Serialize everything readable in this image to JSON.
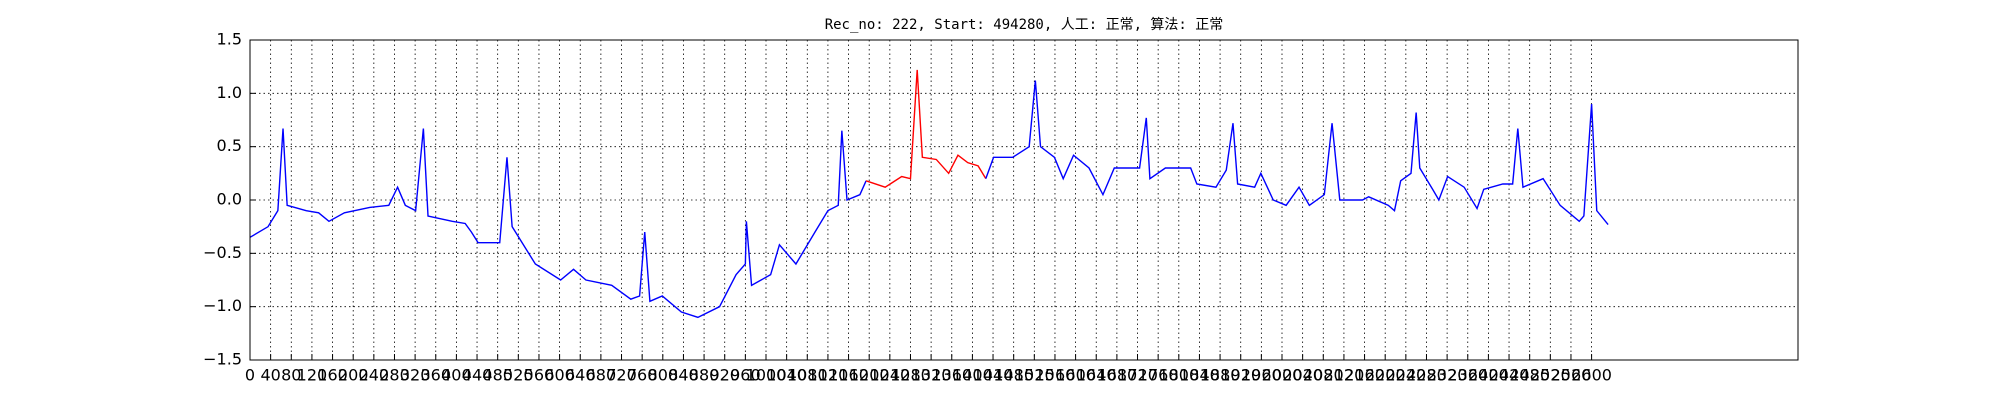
{
  "chart_data": {
    "type": "line",
    "title": "Rec_no: 222, Start: 494280, 人工: 正常, 算法: 正常",
    "series": [
      {
        "color": "#0000ff",
        "x": [
          0,
          35,
          54,
          64,
          72,
          109,
          133,
          153,
          183,
          232,
          269,
          286,
          301,
          321,
          336,
          345,
          392,
          417,
          429,
          442,
          484,
          498,
          508,
          553,
          602,
          627,
          651,
          701,
          738,
          755,
          765,
          775,
          799,
          836,
          868,
          910,
          942,
          960,
          962,
          972,
          1009,
          1026,
          1058,
          1095,
          1120,
          1140,
          1147,
          1157,
          1182,
          1194
        ],
        "values": [
          -0.35,
          -0.25,
          -0.1,
          0.67,
          -0.05,
          -0.1,
          -0.12,
          -0.2,
          -0.12,
          -0.07,
          -0.05,
          0.12,
          -0.05,
          -0.1,
          0.67,
          -0.15,
          -0.2,
          -0.22,
          -0.3,
          -0.4,
          -0.4,
          0.4,
          -0.25,
          -0.6,
          -0.75,
          -0.65,
          -0.75,
          -0.8,
          -0.93,
          -0.9,
          -0.3,
          -0.95,
          -0.9,
          -1.05,
          -1.1,
          -1.0,
          -0.7,
          -0.6,
          -0.2,
          -0.8,
          -0.7,
          -0.42,
          -0.6,
          -0.3,
          -0.1,
          -0.05,
          0.65,
          0.0,
          0.05,
          0.18
        ]
      },
      {
        "color": "#ff0000",
        "x": [
          1194,
          1231,
          1263,
          1280,
          1293,
          1303,
          1330,
          1354,
          1372,
          1391,
          1411,
          1426
        ],
        "values": [
          0.18,
          0.12,
          0.22,
          0.2,
          1.22,
          0.4,
          0.38,
          0.25,
          0.42,
          0.35,
          0.32,
          0.2
        ]
      },
      {
        "color": "#0000ff",
        "x": [
          1426,
          1441,
          1478,
          1510,
          1522,
          1532,
          1559,
          1576,
          1596,
          1626,
          1653,
          1675,
          1724,
          1737,
          1744,
          1774,
          1823,
          1835,
          1872,
          1892,
          1905,
          1914,
          1947,
          1959,
          1983,
          2008,
          2033,
          2053,
          2082,
          2097,
          2112,
          2156,
          2168,
          2206,
          2218,
          2230,
          2250,
          2260,
          2267,
          2292,
          2304,
          2321,
          2353,
          2378,
          2391,
          2428,
          2447,
          2457,
          2467,
          2506,
          2539,
          2576,
          2585,
          2600,
          2610,
          2632
        ],
        "values": [
          0.2,
          0.4,
          0.4,
          0.5,
          1.12,
          0.5,
          0.4,
          0.2,
          0.42,
          0.3,
          0.05,
          0.3,
          0.3,
          0.77,
          0.2,
          0.3,
          0.3,
          0.15,
          0.12,
          0.28,
          0.72,
          0.15,
          0.12,
          0.25,
          0.0,
          -0.05,
          0.12,
          -0.05,
          0.05,
          0.72,
          0.0,
          0.0,
          0.03,
          -0.05,
          -0.1,
          0.18,
          0.25,
          0.82,
          0.3,
          0.1,
          0.0,
          0.22,
          0.12,
          -0.08,
          0.1,
          0.15,
          0.15,
          0.67,
          0.12,
          0.2,
          -0.05,
          -0.2,
          -0.15,
          0.9,
          -0.1,
          -0.23
        ]
      }
    ],
    "xlim": [
      0,
      3000
    ],
    "xticks": [
      0,
      40,
      80,
      120,
      160,
      200,
      240,
      280,
      320,
      360,
      400,
      440,
      480,
      520,
      560,
      600,
      640,
      680,
      720,
      760,
      800,
      840,
      880,
      920,
      960,
      1000,
      1040,
      1080,
      1120,
      1160,
      1200,
      1240,
      1280,
      1320,
      1360,
      1400,
      1440,
      1480,
      1520,
      1560,
      1600,
      1640,
      1680,
      1720,
      1760,
      1800,
      1840,
      1880,
      1920,
      1960,
      2000,
      2040,
      2080,
      2120,
      2160,
      2200,
      2240,
      2280,
      2320,
      2360,
      2400,
      2440,
      2480,
      2520,
      2560,
      2600
    ],
    "ylim": [
      -1.5,
      1.5
    ],
    "yticks": [
      {
        "value": -1.5,
        "label": "−1.5"
      },
      {
        "value": -1,
        "label": "−1.0"
      },
      {
        "value": -0.5,
        "label": "−0.5"
      },
      {
        "value": 0,
        "label": "0.0"
      },
      0.5,
      {
        "value": 1,
        "label": "1.0"
      },
      1.5
    ],
    "grid": true
  }
}
